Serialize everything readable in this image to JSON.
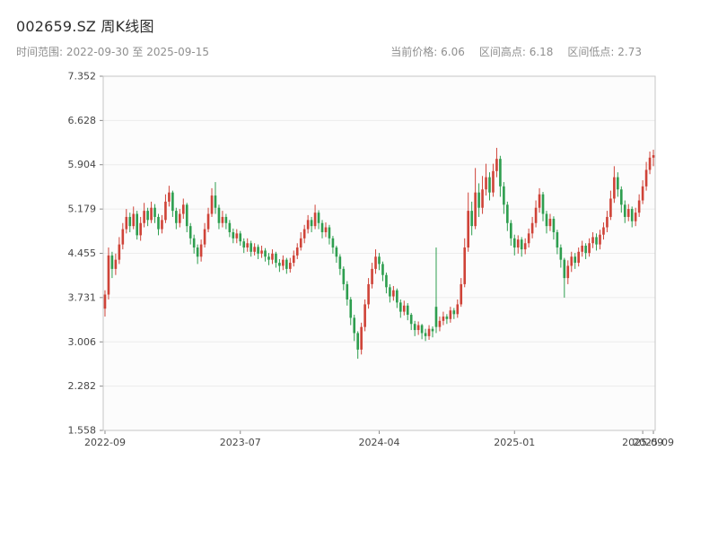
{
  "header": {
    "title": "002659.SZ 周K线图",
    "subtitle": "时间范围: 2022-09-30 至 2025-09-15",
    "stats": {
      "current": "当前价格: 6.06",
      "high": "区间高点: 6.18",
      "low": "区间低点: 2.73"
    }
  },
  "chart_data": {
    "type": "candlestick",
    "symbol": "002659.SZ",
    "title": "002659.SZ 周K线图",
    "frequency": "weekly",
    "start_date": "2022-09-30",
    "end_date": "2025-09-15",
    "current_price": 6.06,
    "range_high": 6.18,
    "range_low": 2.73,
    "ylim": [
      1.558,
      7.352
    ],
    "y_ticks": [
      7.352,
      6.628,
      5.904,
      5.179,
      4.455,
      3.731,
      3.006,
      2.282,
      1.558
    ],
    "x_ticks": [
      {
        "label": "2022-09",
        "index": 0
      },
      {
        "label": "2023-07",
        "index": 38
      },
      {
        "label": "2024-04",
        "index": 77
      },
      {
        "label": "2025-01",
        "index": 115
      },
      {
        "label": "2025-09",
        "index": 151
      },
      {
        "label": "2025-09",
        "index": 154
      }
    ],
    "up_color": "#cf4338",
    "down_color": "#2e9e4f",
    "grid": true,
    "ohlc_format": [
      "open",
      "high",
      "low",
      "close"
    ],
    "candles": [
      [
        3.55,
        3.85,
        3.42,
        3.78
      ],
      [
        3.78,
        4.55,
        3.7,
        4.42
      ],
      [
        4.42,
        4.48,
        4.05,
        4.2
      ],
      [
        4.2,
        4.45,
        4.1,
        4.35
      ],
      [
        4.35,
        4.72,
        4.28,
        4.6
      ],
      [
        4.6,
        4.95,
        4.52,
        4.85
      ],
      [
        4.85,
        5.18,
        4.78,
        5.05
      ],
      [
        5.05,
        5.12,
        4.8,
        4.9
      ],
      [
        4.9,
        5.22,
        4.85,
        5.1
      ],
      [
        5.1,
        5.15,
        4.68,
        4.75
      ],
      [
        4.75,
        5.05,
        4.66,
        4.95
      ],
      [
        4.95,
        5.28,
        4.88,
        5.15
      ],
      [
        5.15,
        5.2,
        4.9,
        5.0
      ],
      [
        5.0,
        5.3,
        4.95,
        5.2
      ],
      [
        5.2,
        5.26,
        4.95,
        5.05
      ],
      [
        5.05,
        5.1,
        4.75,
        4.85
      ],
      [
        4.85,
        5.08,
        4.78,
        5.0
      ],
      [
        5.0,
        5.42,
        4.95,
        5.3
      ],
      [
        5.3,
        5.56,
        5.22,
        5.45
      ],
      [
        5.45,
        5.48,
        5.05,
        5.15
      ],
      [
        5.15,
        5.2,
        4.85,
        4.95
      ],
      [
        4.95,
        5.18,
        4.88,
        5.1
      ],
      [
        5.1,
        5.35,
        5.02,
        5.25
      ],
      [
        5.25,
        5.28,
        4.8,
        4.9
      ],
      [
        4.9,
        4.95,
        4.6,
        4.7
      ],
      [
        4.7,
        4.76,
        4.45,
        4.55
      ],
      [
        4.55,
        4.6,
        4.28,
        4.4
      ],
      [
        4.4,
        4.68,
        4.32,
        4.6
      ],
      [
        4.6,
        4.95,
        4.55,
        4.85
      ],
      [
        4.85,
        5.2,
        4.8,
        5.1
      ],
      [
        5.1,
        5.52,
        5.05,
        5.4
      ],
      [
        5.4,
        5.62,
        5.1,
        5.2
      ],
      [
        5.2,
        5.25,
        4.85,
        4.95
      ],
      [
        4.95,
        5.15,
        4.88,
        5.05
      ],
      [
        5.05,
        5.1,
        4.85,
        4.95
      ],
      [
        4.95,
        5.0,
        4.72,
        4.8
      ],
      [
        4.8,
        4.86,
        4.62,
        4.7
      ],
      [
        4.7,
        4.85,
        4.62,
        4.78
      ],
      [
        4.78,
        4.82,
        4.58,
        4.65
      ],
      [
        4.65,
        4.7,
        4.46,
        4.55
      ],
      [
        4.55,
        4.7,
        4.48,
        4.62
      ],
      [
        4.62,
        4.66,
        4.4,
        4.48
      ],
      [
        4.48,
        4.62,
        4.42,
        4.56
      ],
      [
        4.56,
        4.6,
        4.36,
        4.45
      ],
      [
        4.45,
        4.58,
        4.38,
        4.5
      ],
      [
        4.5,
        4.54,
        4.32,
        4.4
      ],
      [
        4.4,
        4.46,
        4.26,
        4.35
      ],
      [
        4.35,
        4.52,
        4.28,
        4.45
      ],
      [
        4.45,
        4.48,
        4.22,
        4.3
      ],
      [
        4.3,
        4.36,
        4.15,
        4.25
      ],
      [
        4.25,
        4.42,
        4.18,
        4.35
      ],
      [
        4.35,
        4.38,
        4.12,
        4.2
      ],
      [
        4.2,
        4.38,
        4.14,
        4.3
      ],
      [
        4.3,
        4.5,
        4.24,
        4.42
      ],
      [
        4.42,
        4.62,
        4.36,
        4.55
      ],
      [
        4.55,
        4.8,
        4.5,
        4.7
      ],
      [
        4.7,
        4.92,
        4.62,
        4.85
      ],
      [
        4.85,
        5.08,
        4.78,
        5.0
      ],
      [
        5.0,
        5.05,
        4.8,
        4.9
      ],
      [
        4.9,
        5.25,
        4.85,
        5.12
      ],
      [
        5.12,
        5.16,
        4.85,
        4.95
      ],
      [
        4.95,
        5.0,
        4.7,
        4.8
      ],
      [
        4.8,
        4.96,
        4.72,
        4.88
      ],
      [
        4.88,
        4.92,
        4.6,
        4.7
      ],
      [
        4.7,
        4.74,
        4.45,
        4.55
      ],
      [
        4.55,
        4.58,
        4.3,
        4.4
      ],
      [
        4.4,
        4.44,
        4.1,
        4.2
      ],
      [
        4.2,
        4.24,
        3.85,
        3.95
      ],
      [
        3.95,
        4.0,
        3.6,
        3.7
      ],
      [
        3.7,
        3.74,
        3.28,
        3.4
      ],
      [
        3.4,
        3.45,
        3.02,
        3.15
      ],
      [
        3.15,
        3.18,
        2.73,
        2.88
      ],
      [
        2.88,
        3.32,
        2.8,
        3.25
      ],
      [
        3.25,
        3.7,
        3.18,
        3.62
      ],
      [
        3.62,
        4.05,
        3.55,
        3.95
      ],
      [
        3.95,
        4.3,
        3.88,
        4.2
      ],
      [
        4.2,
        4.52,
        4.12,
        4.4
      ],
      [
        4.4,
        4.46,
        4.18,
        4.28
      ],
      [
        4.28,
        4.32,
        4.0,
        4.1
      ],
      [
        4.1,
        4.14,
        3.8,
        3.9
      ],
      [
        3.9,
        3.95,
        3.65,
        3.75
      ],
      [
        3.75,
        3.92,
        3.68,
        3.85
      ],
      [
        3.85,
        3.88,
        3.56,
        3.65
      ],
      [
        3.65,
        3.7,
        3.4,
        3.5
      ],
      [
        3.5,
        3.68,
        3.44,
        3.6
      ],
      [
        3.6,
        3.64,
        3.36,
        3.45
      ],
      [
        3.45,
        3.48,
        3.2,
        3.3
      ],
      [
        3.3,
        3.35,
        3.1,
        3.2
      ],
      [
        3.2,
        3.34,
        3.12,
        3.28
      ],
      [
        3.28,
        3.3,
        3.05,
        3.15
      ],
      [
        3.15,
        3.22,
        3.02,
        3.1
      ],
      [
        3.1,
        3.28,
        3.04,
        3.22
      ],
      [
        3.22,
        3.26,
        3.08,
        3.18
      ],
      [
        3.58,
        4.55,
        3.15,
        3.25
      ],
      [
        3.25,
        3.42,
        3.18,
        3.35
      ],
      [
        3.35,
        3.5,
        3.28,
        3.42
      ],
      [
        3.42,
        3.46,
        3.3,
        3.38
      ],
      [
        3.38,
        3.58,
        3.32,
        3.52
      ],
      [
        3.52,
        3.56,
        3.38,
        3.46
      ],
      [
        3.46,
        3.7,
        3.4,
        3.62
      ],
      [
        3.62,
        4.05,
        3.58,
        3.95
      ],
      [
        3.95,
        4.7,
        3.9,
        4.55
      ],
      [
        4.55,
        5.45,
        4.48,
        5.15
      ],
      [
        5.15,
        5.3,
        4.75,
        4.9
      ],
      [
        4.9,
        5.85,
        4.85,
        5.45
      ],
      [
        5.45,
        5.6,
        5.05,
        5.2
      ],
      [
        5.2,
        5.72,
        5.1,
        5.5
      ],
      [
        5.5,
        5.92,
        5.4,
        5.7
      ],
      [
        5.7,
        5.78,
        5.32,
        5.45
      ],
      [
        5.45,
        5.92,
        5.38,
        5.8
      ],
      [
        5.8,
        6.18,
        5.7,
        6.0
      ],
      [
        6.0,
        6.05,
        5.38,
        5.55
      ],
      [
        5.55,
        5.62,
        5.1,
        5.25
      ],
      [
        5.25,
        5.3,
        4.82,
        4.95
      ],
      [
        4.95,
        5.0,
        4.58,
        4.7
      ],
      [
        4.7,
        4.76,
        4.42,
        4.55
      ],
      [
        4.55,
        4.75,
        4.45,
        4.68
      ],
      [
        4.68,
        4.72,
        4.4,
        4.52
      ],
      [
        4.52,
        4.7,
        4.44,
        4.62
      ],
      [
        4.62,
        4.86,
        4.55,
        4.78
      ],
      [
        4.78,
        5.05,
        4.7,
        4.95
      ],
      [
        4.95,
        5.32,
        4.88,
        5.2
      ],
      [
        5.2,
        5.52,
        5.12,
        5.42
      ],
      [
        5.42,
        5.46,
        4.98,
        5.1
      ],
      [
        5.1,
        5.15,
        4.78,
        4.9
      ],
      [
        4.9,
        5.1,
        4.82,
        5.02
      ],
      [
        5.02,
        5.06,
        4.68,
        4.8
      ],
      [
        4.8,
        4.84,
        4.44,
        4.55
      ],
      [
        4.55,
        4.6,
        4.22,
        4.35
      ],
      [
        4.35,
        4.38,
        3.73,
        4.05
      ],
      [
        4.05,
        4.34,
        3.95,
        4.25
      ],
      [
        4.25,
        4.48,
        4.15,
        4.4
      ],
      [
        4.4,
        4.46,
        4.2,
        4.3
      ],
      [
        4.3,
        4.55,
        4.24,
        4.48
      ],
      [
        4.48,
        4.66,
        4.4,
        4.58
      ],
      [
        4.58,
        4.62,
        4.36,
        4.46
      ],
      [
        4.46,
        4.7,
        4.4,
        4.62
      ],
      [
        4.62,
        4.8,
        4.54,
        4.72
      ],
      [
        4.72,
        4.78,
        4.5,
        4.6
      ],
      [
        4.6,
        4.84,
        4.52,
        4.76
      ],
      [
        4.76,
        4.96,
        4.68,
        4.88
      ],
      [
        4.88,
        5.15,
        4.8,
        5.05
      ],
      [
        5.05,
        5.48,
        5.0,
        5.35
      ],
      [
        5.35,
        5.88,
        5.28,
        5.7
      ],
      [
        5.7,
        5.78,
        5.38,
        5.5
      ],
      [
        5.5,
        5.55,
        5.12,
        5.25
      ],
      [
        5.25,
        5.32,
        4.95,
        5.05
      ],
      [
        5.05,
        5.26,
        4.98,
        5.18
      ],
      [
        5.18,
        5.22,
        4.88,
        4.98
      ],
      [
        4.98,
        5.2,
        4.9,
        5.12
      ],
      [
        5.12,
        5.42,
        5.05,
        5.32
      ],
      [
        5.32,
        5.65,
        5.26,
        5.55
      ],
      [
        5.55,
        5.95,
        5.48,
        5.82
      ],
      [
        5.82,
        6.12,
        5.75,
        6.02
      ],
      [
        6.02,
        6.15,
        5.88,
        6.06
      ]
    ]
  }
}
